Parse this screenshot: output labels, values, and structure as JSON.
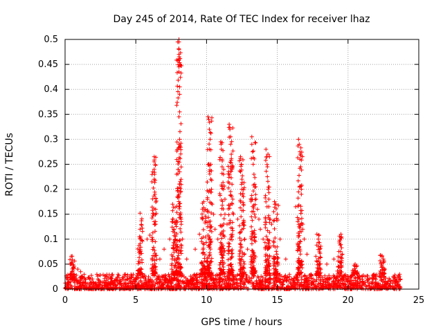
{
  "chart_data": {
    "type": "scatter",
    "title": "Day 245 of 2014, Rate Of TEC Index for receiver lhaz",
    "xlabel": "GPS time / hours",
    "ylabel": "ROTI / TECUs",
    "xlim": [
      0,
      25
    ],
    "ylim": [
      0,
      0.5
    ],
    "xticks": [
      0,
      5,
      10,
      15,
      20,
      25
    ],
    "yticks": [
      0,
      0.05,
      0.1,
      0.15,
      0.2,
      0.25,
      0.3,
      0.35,
      0.4,
      0.45,
      0.5
    ],
    "ytick_labels": [
      "0",
      "0.05",
      "0.1",
      "0.15",
      "0.2",
      "0.25",
      "0.3",
      "0.35",
      "0.4",
      "0.45",
      "0.5"
    ],
    "grid": true,
    "marker": "+",
    "color": "#ff0000",
    "baseline": {
      "x_range": [
        0,
        23.7
      ],
      "y_range": [
        0.0,
        0.03
      ]
    },
    "series": [
      {
        "name": "ROTI",
        "points": [
          [
            0.5,
            0.066
          ],
          [
            0.9,
            0.04
          ],
          [
            1.1,
            0.035
          ],
          [
            5.3,
            0.152
          ],
          [
            5.3,
            0.12
          ],
          [
            5.8,
            0.1
          ],
          [
            6.0,
            0.108
          ],
          [
            6.3,
            0.265
          ],
          [
            6.3,
            0.255
          ],
          [
            6.3,
            0.24
          ],
          [
            6.3,
            0.22
          ],
          [
            6.35,
            0.19
          ],
          [
            6.4,
            0.16
          ],
          [
            6.4,
            0.13
          ],
          [
            6.7,
            0.06
          ],
          [
            7.0,
            0.08
          ],
          [
            7.4,
            0.1
          ],
          [
            7.6,
            0.17
          ],
          [
            7.6,
            0.14
          ],
          [
            7.7,
            0.12
          ],
          [
            7.8,
            0.1
          ],
          [
            8.05,
            0.5
          ],
          [
            8.05,
            0.495
          ],
          [
            8.05,
            0.48
          ],
          [
            8.05,
            0.47
          ],
          [
            8.05,
            0.46
          ],
          [
            8.05,
            0.445
          ],
          [
            8.05,
            0.435
          ],
          [
            8.1,
            0.405
          ],
          [
            8.1,
            0.39
          ],
          [
            8.1,
            0.355
          ],
          [
            8.05,
            0.345
          ],
          [
            8.1,
            0.3
          ],
          [
            8.05,
            0.29
          ],
          [
            8.1,
            0.235
          ],
          [
            8.05,
            0.19
          ],
          [
            8.1,
            0.165
          ],
          [
            8.2,
            0.14
          ],
          [
            8.3,
            0.1
          ],
          [
            8.6,
            0.06
          ],
          [
            9.2,
            0.08
          ],
          [
            9.5,
            0.11
          ],
          [
            9.7,
            0.14
          ],
          [
            9.8,
            0.175
          ],
          [
            9.9,
            0.16
          ],
          [
            10.1,
            0.345
          ],
          [
            10.15,
            0.34
          ],
          [
            10.2,
            0.32
          ],
          [
            10.25,
            0.3
          ],
          [
            10.2,
            0.28
          ],
          [
            10.3,
            0.25
          ],
          [
            10.3,
            0.22
          ],
          [
            10.35,
            0.2
          ],
          [
            10.4,
            0.17
          ],
          [
            10.5,
            0.15
          ],
          [
            10.6,
            0.12
          ],
          [
            10.8,
            0.1
          ],
          [
            11.0,
            0.295
          ],
          [
            11.05,
            0.28
          ],
          [
            11.1,
            0.26
          ],
          [
            11.1,
            0.245
          ],
          [
            11.2,
            0.23
          ],
          [
            11.2,
            0.2
          ],
          [
            11.3,
            0.18
          ],
          [
            11.3,
            0.15
          ],
          [
            11.45,
            0.13
          ],
          [
            11.6,
            0.33
          ],
          [
            11.65,
            0.32
          ],
          [
            11.7,
            0.305
          ],
          [
            11.7,
            0.29
          ],
          [
            11.75,
            0.27
          ],
          [
            11.8,
            0.24
          ],
          [
            11.8,
            0.21
          ],
          [
            11.85,
            0.18
          ],
          [
            11.9,
            0.15
          ],
          [
            12.2,
            0.14
          ],
          [
            12.4,
            0.265
          ],
          [
            12.45,
            0.25
          ],
          [
            12.4,
            0.235
          ],
          [
            12.5,
            0.22
          ],
          [
            12.5,
            0.2
          ],
          [
            12.6,
            0.185
          ],
          [
            12.6,
            0.17
          ],
          [
            12.6,
            0.13
          ],
          [
            12.7,
            0.1
          ],
          [
            12.9,
            0.08
          ],
          [
            13.2,
            0.305
          ],
          [
            13.2,
            0.29
          ],
          [
            13.25,
            0.275
          ],
          [
            13.3,
            0.25
          ],
          [
            13.35,
            0.23
          ],
          [
            13.4,
            0.21
          ],
          [
            13.5,
            0.18
          ],
          [
            13.6,
            0.16
          ],
          [
            13.7,
            0.14
          ],
          [
            13.8,
            0.12
          ],
          [
            14.0,
            0.1
          ],
          [
            14.2,
            0.28
          ],
          [
            14.25,
            0.265
          ],
          [
            14.3,
            0.245
          ],
          [
            14.3,
            0.225
          ],
          [
            14.35,
            0.2
          ],
          [
            14.4,
            0.18
          ],
          [
            14.4,
            0.165
          ],
          [
            14.5,
            0.14
          ],
          [
            14.6,
            0.13
          ],
          [
            14.8,
            0.175
          ],
          [
            14.9,
            0.17
          ],
          [
            15.0,
            0.15
          ],
          [
            15.2,
            0.1
          ],
          [
            15.6,
            0.06
          ],
          [
            16.3,
            0.165
          ],
          [
            16.5,
            0.3
          ],
          [
            16.55,
            0.29
          ],
          [
            16.6,
            0.275
          ],
          [
            16.6,
            0.26
          ],
          [
            16.65,
            0.245
          ],
          [
            16.7,
            0.2
          ],
          [
            16.7,
            0.19
          ],
          [
            16.8,
            0.13
          ],
          [
            16.8,
            0.12
          ],
          [
            16.9,
            0.1
          ],
          [
            17.1,
            0.07
          ],
          [
            17.8,
            0.11
          ],
          [
            17.9,
            0.1
          ],
          [
            18.0,
            0.08
          ],
          [
            18.5,
            0.05
          ],
          [
            19.0,
            0.06
          ],
          [
            19.3,
            0.065
          ],
          [
            19.5,
            0.11
          ],
          [
            19.6,
            0.07
          ],
          [
            20.5,
            0.05
          ],
          [
            20.6,
            0.045
          ],
          [
            22.3,
            0.068
          ],
          [
            22.4,
            0.065
          ],
          [
            22.5,
            0.06
          ],
          [
            22.6,
            0.04
          ]
        ]
      }
    ],
    "clusters": [
      {
        "x": 0.5,
        "min": 0.02,
        "max": 0.066
      },
      {
        "x": 5.3,
        "min": 0.03,
        "max": 0.152
      },
      {
        "x": 6.3,
        "min": 0.03,
        "max": 0.265
      },
      {
        "x": 7.7,
        "min": 0.03,
        "max": 0.17
      },
      {
        "x": 8.05,
        "min": 0.03,
        "max": 0.5
      },
      {
        "x": 9.8,
        "min": 0.03,
        "max": 0.175
      },
      {
        "x": 10.2,
        "min": 0.03,
        "max": 0.345
      },
      {
        "x": 11.1,
        "min": 0.03,
        "max": 0.295
      },
      {
        "x": 11.7,
        "min": 0.03,
        "max": 0.33
      },
      {
        "x": 12.5,
        "min": 0.03,
        "max": 0.265
      },
      {
        "x": 13.3,
        "min": 0.03,
        "max": 0.305
      },
      {
        "x": 14.3,
        "min": 0.03,
        "max": 0.28
      },
      {
        "x": 14.9,
        "min": 0.03,
        "max": 0.175
      },
      {
        "x": 16.6,
        "min": 0.03,
        "max": 0.3
      },
      {
        "x": 17.9,
        "min": 0.03,
        "max": 0.11
      },
      {
        "x": 19.4,
        "min": 0.03,
        "max": 0.11
      },
      {
        "x": 20.5,
        "min": 0.03,
        "max": 0.05
      },
      {
        "x": 22.4,
        "min": 0.03,
        "max": 0.068
      }
    ]
  }
}
